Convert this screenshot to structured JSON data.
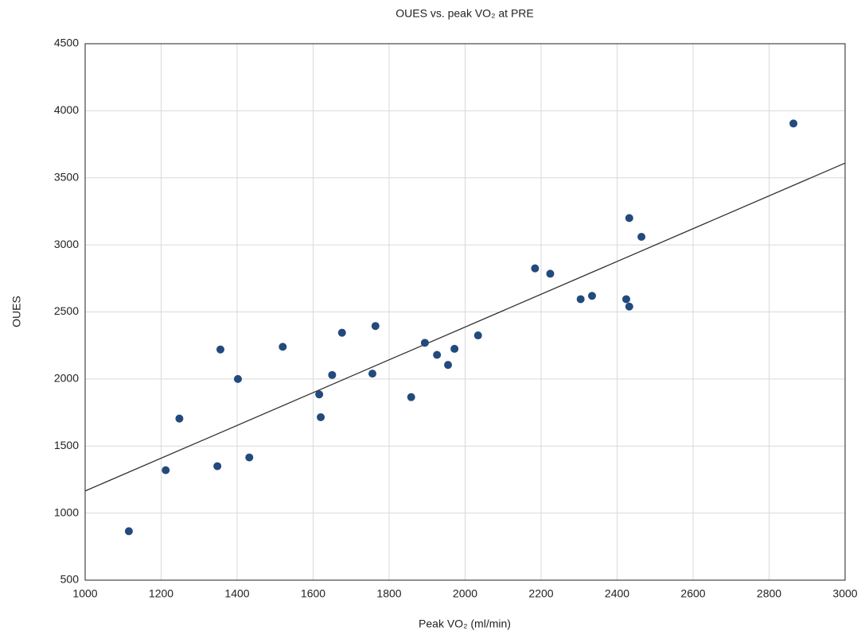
{
  "chart_data": {
    "type": "scatter",
    "title": "OUES vs. peak VO₂ at PRE",
    "x_label": "Peak VO₂ (ml/min)",
    "y_label": "OUES",
    "series": [
      {
        "color": "#234a7c",
        "x": [
          1115,
          1212,
          1248,
          1348,
          1356,
          1402,
          1432,
          1520,
          1616,
          1620,
          1650,
          1676,
          1756,
          1764,
          1858,
          1894,
          1926,
          1955,
          1972,
          2034,
          2184,
          2224,
          2304,
          2334,
          2424,
          2432,
          2432,
          2464,
          2864
        ],
        "values": [
          865,
          1320,
          1705,
          1350,
          2220,
          2000,
          1415,
          2240,
          1885,
          1715,
          2030,
          2345,
          2040,
          2395,
          1865,
          2270,
          2180,
          2105,
          2225,
          2325,
          2825,
          2785,
          2595,
          2620,
          2595,
          3200,
          2540,
          3060,
          3905
        ]
      }
    ],
    "trendline": {
      "color": "#333333",
      "x": [
        1000,
        3000
      ],
      "values": [
        1165,
        3610
      ]
    },
    "xlim": [
      1000,
      3000
    ],
    "xticks": [
      1000,
      1200,
      1400,
      1600,
      1800,
      2000,
      2200,
      2400,
      2600,
      2800,
      3000
    ],
    "ylim": [
      500,
      4500
    ],
    "yticks": [
      500,
      1000,
      1500,
      2000,
      2500,
      3000,
      3500,
      4000,
      4500
    ],
    "grid": true
  }
}
